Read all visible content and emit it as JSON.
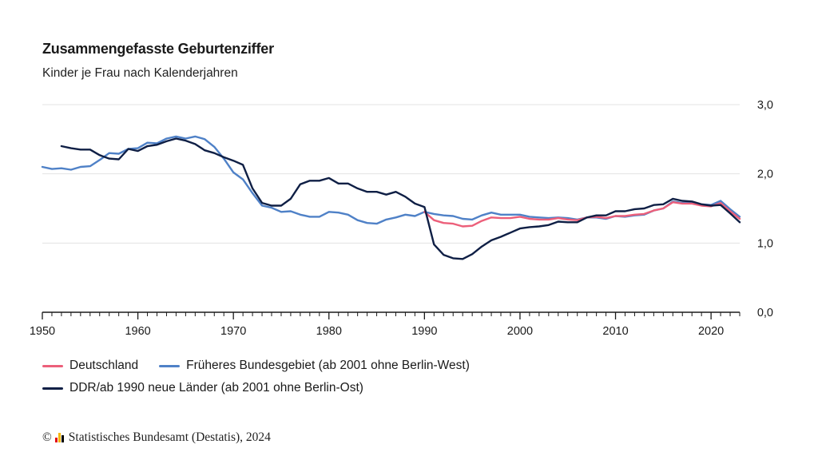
{
  "title": "Zusammengefasste Geburtenziffer",
  "subtitle": "Kinder je Frau nach Kalenderjahren",
  "source": {
    "copyright_symbol": "©",
    "text": "Statistisches Bundesamt (Destatis), 2024",
    "logo_colors": [
      "#e30613",
      "#f6b600",
      "#000000"
    ]
  },
  "colors": {
    "deutschland": "#ec5f7a",
    "west": "#4f81c7",
    "ost": "#0f1f45",
    "grid": "#e3e3e3",
    "axis": "#1a1a1a"
  },
  "chart_data": {
    "type": "line",
    "xlabel": "",
    "ylabel": "",
    "xlim": [
      1950,
      2023
    ],
    "ylim": [
      0,
      3
    ],
    "x_ticks": [
      "1950",
      "1960",
      "1970",
      "1980",
      "1990",
      "2000",
      "2010",
      "2020"
    ],
    "y_ticks": [
      "0,0",
      "1,0",
      "2,0",
      "3,0"
    ],
    "y_axis_position": "right",
    "grid": true,
    "legend_position": "bottom",
    "series": [
      {
        "name": "Deutschland",
        "color": "#ec5f7a",
        "x": [
          1990,
          1991,
          1992,
          1993,
          1994,
          1995,
          1996,
          1997,
          1998,
          1999,
          2000,
          2001,
          2002,
          2003,
          2004,
          2005,
          2006,
          2007,
          2008,
          2009,
          2010,
          2011,
          2012,
          2013,
          2014,
          2015,
          2016,
          2017,
          2018,
          2019,
          2020,
          2021,
          2022,
          2023
        ],
        "y": [
          1.45,
          1.33,
          1.29,
          1.28,
          1.24,
          1.25,
          1.32,
          1.37,
          1.36,
          1.36,
          1.38,
          1.35,
          1.34,
          1.34,
          1.36,
          1.34,
          1.33,
          1.37,
          1.38,
          1.36,
          1.39,
          1.39,
          1.41,
          1.42,
          1.47,
          1.5,
          1.59,
          1.57,
          1.57,
          1.54,
          1.53,
          1.58,
          1.46,
          1.35
        ]
      },
      {
        "name": "Früheres Bundesgebiet (ab 2001 ohne Berlin-West)",
        "color": "#4f81c7",
        "x": [
          1950,
          1951,
          1952,
          1953,
          1954,
          1955,
          1956,
          1957,
          1958,
          1959,
          1960,
          1961,
          1962,
          1963,
          1964,
          1965,
          1966,
          1967,
          1968,
          1969,
          1970,
          1971,
          1972,
          1973,
          1974,
          1975,
          1976,
          1977,
          1978,
          1979,
          1980,
          1981,
          1982,
          1983,
          1984,
          1985,
          1986,
          1987,
          1988,
          1989,
          1990,
          1991,
          1992,
          1993,
          1994,
          1995,
          1996,
          1997,
          1998,
          1999,
          2000,
          2001,
          2002,
          2003,
          2004,
          2005,
          2006,
          2007,
          2008,
          2009,
          2010,
          2011,
          2012,
          2013,
          2014,
          2015,
          2016,
          2017,
          2018,
          2019,
          2020,
          2021,
          2022,
          2023
        ],
        "y": [
          2.1,
          2.07,
          2.08,
          2.06,
          2.1,
          2.11,
          2.2,
          2.3,
          2.29,
          2.36,
          2.37,
          2.45,
          2.44,
          2.51,
          2.54,
          2.51,
          2.54,
          2.5,
          2.39,
          2.22,
          2.02,
          1.92,
          1.72,
          1.54,
          1.51,
          1.45,
          1.46,
          1.41,
          1.38,
          1.38,
          1.45,
          1.44,
          1.41,
          1.33,
          1.29,
          1.28,
          1.34,
          1.37,
          1.41,
          1.39,
          1.45,
          1.42,
          1.4,
          1.39,
          1.35,
          1.34,
          1.4,
          1.44,
          1.41,
          1.41,
          1.41,
          1.38,
          1.37,
          1.36,
          1.37,
          1.36,
          1.34,
          1.37,
          1.37,
          1.35,
          1.39,
          1.38,
          1.4,
          1.41,
          1.47,
          1.5,
          1.6,
          1.58,
          1.58,
          1.56,
          1.55,
          1.61,
          1.49,
          1.38
        ]
      },
      {
        "name": "DDR/ab 1990 neue Länder (ab 2001 ohne Berlin-Ost)",
        "color": "#0f1f45",
        "x": [
          1952,
          1953,
          1954,
          1955,
          1956,
          1957,
          1958,
          1959,
          1960,
          1961,
          1962,
          1963,
          1964,
          1965,
          1966,
          1967,
          1968,
          1969,
          1970,
          1971,
          1972,
          1973,
          1974,
          1975,
          1976,
          1977,
          1978,
          1979,
          1980,
          1981,
          1982,
          1983,
          1984,
          1985,
          1986,
          1987,
          1988,
          1989,
          1990,
          1991,
          1992,
          1993,
          1994,
          1995,
          1996,
          1997,
          1998,
          1999,
          2000,
          2001,
          2002,
          2003,
          2004,
          2005,
          2006,
          2007,
          2008,
          2009,
          2010,
          2011,
          2012,
          2013,
          2014,
          2015,
          2016,
          2017,
          2018,
          2019,
          2020,
          2021,
          2022,
          2023
        ],
        "y": [
          2.4,
          2.37,
          2.35,
          2.35,
          2.27,
          2.22,
          2.21,
          2.36,
          2.33,
          2.4,
          2.42,
          2.47,
          2.51,
          2.48,
          2.43,
          2.34,
          2.3,
          2.24,
          2.19,
          2.13,
          1.79,
          1.58,
          1.54,
          1.54,
          1.64,
          1.85,
          1.9,
          1.9,
          1.94,
          1.86,
          1.86,
          1.79,
          1.74,
          1.74,
          1.7,
          1.74,
          1.67,
          1.57,
          1.52,
          0.98,
          0.83,
          0.78,
          0.77,
          0.84,
          0.95,
          1.04,
          1.09,
          1.15,
          1.21,
          1.23,
          1.24,
          1.26,
          1.31,
          1.3,
          1.3,
          1.37,
          1.4,
          1.4,
          1.46,
          1.46,
          1.49,
          1.5,
          1.55,
          1.56,
          1.64,
          1.61,
          1.6,
          1.56,
          1.54,
          1.55,
          1.43,
          1.3
        ]
      }
    ]
  }
}
